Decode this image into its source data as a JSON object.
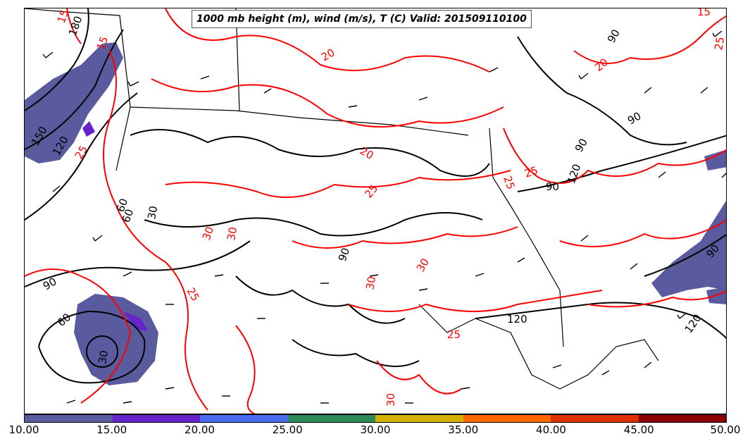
{
  "title": "1000 mb height (m), wind (m/s), T (C) Valid: 201509110100",
  "colorbar": {
    "ticks": [
      "10.00",
      "15.00",
      "20.00",
      "25.00",
      "30.00",
      "35.00",
      "40.00",
      "45.00",
      "50.00"
    ],
    "colors": [
      "#5a5a9e",
      "#6622cc",
      "#4a6cf0",
      "#2e8b57",
      "#d4b000",
      "#ff6600",
      "#e03000",
      "#8b0000",
      "#f0409a"
    ]
  },
  "contour_labels": {
    "height": [
      "180",
      "150",
      "120",
      "90",
      "60",
      "30",
      "90",
      "60",
      "90",
      "90",
      "120",
      "120",
      "90",
      "120",
      "60",
      "30",
      "90",
      "90"
    ],
    "temperature": [
      "15",
      "15",
      "25",
      "20",
      "20",
      "30",
      "25",
      "25",
      "20",
      "30",
      "30",
      "25",
      "25",
      "25",
      "15",
      "30",
      "30",
      "25"
    ]
  },
  "colors": {
    "height_contour": "#000000",
    "temperature_contour": "#ff0000",
    "wind_speed_shade": "#5a5a9e"
  }
}
